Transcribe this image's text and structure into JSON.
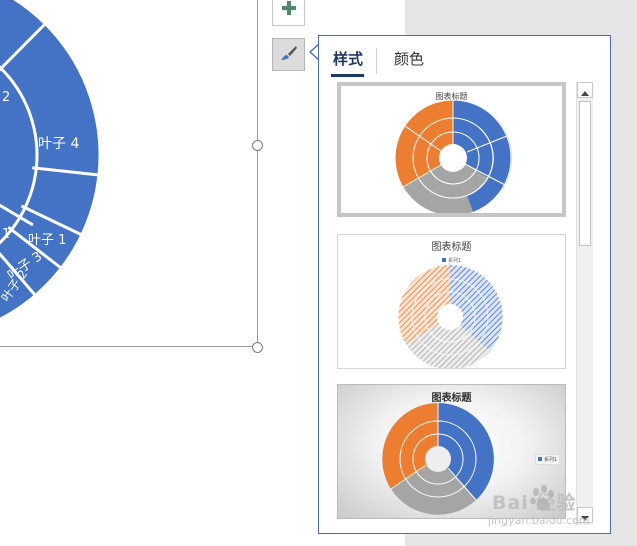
{
  "chart": {
    "leaf_labels": [
      "叶子 4",
      "叶子 1",
      "叶子 3",
      "叶子 2"
    ],
    "partial_labels": [
      "2",
      "1"
    ],
    "fill_color": "#4472c4"
  },
  "side_buttons": [
    {
      "name": "chart-elements",
      "icon": "plus-icon"
    },
    {
      "name": "chart-styles",
      "icon": "brush-icon"
    }
  ],
  "panel": {
    "tabs": [
      {
        "label": "样式",
        "active": true
      },
      {
        "label": "颜色",
        "active": false
      }
    ],
    "styles": [
      {
        "title": "图表标题",
        "selected": true,
        "variant": "solid-colored"
      },
      {
        "title": "图表标题",
        "legend": "系列1",
        "selected": false,
        "variant": "hatched"
      },
      {
        "title": "图表标题",
        "legend": "系列1",
        "selected": false,
        "variant": "gradient-background"
      }
    ]
  },
  "colors": {
    "blue": "#4472c4",
    "orange": "#ed7d31",
    "gray": "#a5a5a5",
    "panel_border": "#4a6fa5",
    "tab_active": "#1f3864",
    "plus_icon": "#4a8a6a"
  },
  "watermark": {
    "line1": "Bai  经验",
    "line2": "jingyan.baidu.com"
  }
}
